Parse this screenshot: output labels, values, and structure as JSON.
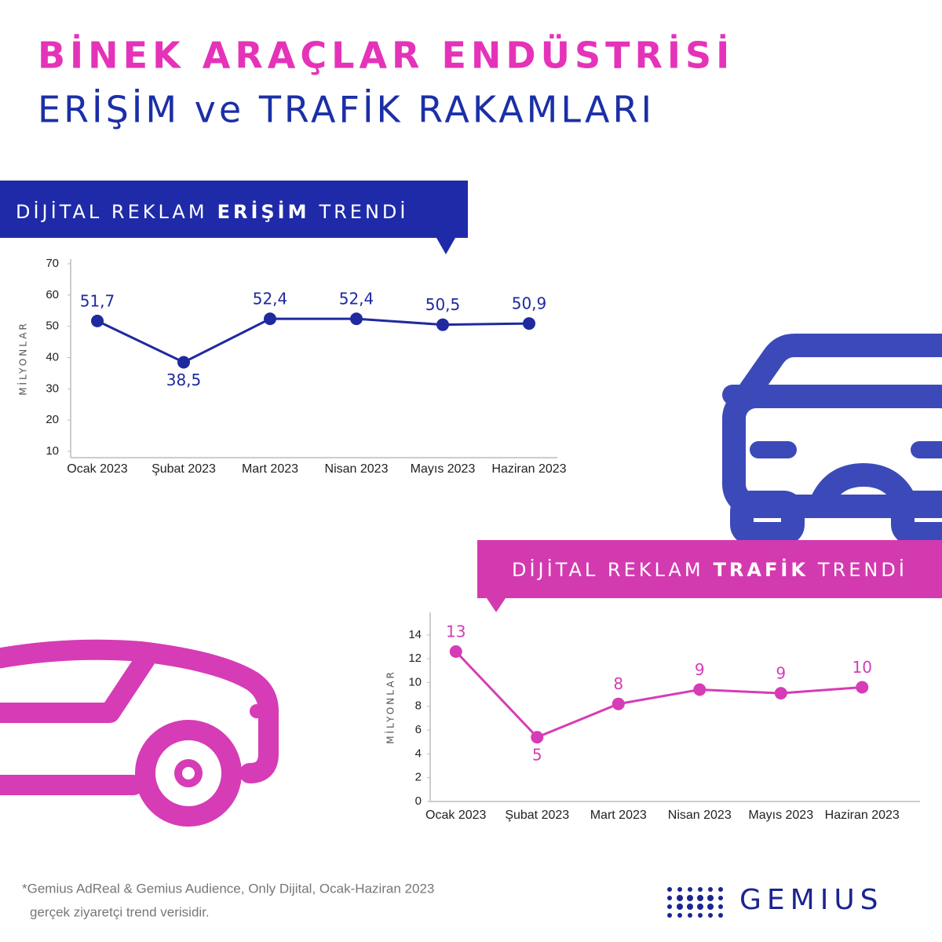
{
  "header": {
    "title": "BİNEK ARAÇLAR ENDÜSTRİSİ",
    "subtitle": "ERİŞİM ve TRAFİK RAKAMLARI"
  },
  "chart_data": [
    {
      "type": "line",
      "title": [
        "DİJİTAL REKLAM",
        "ERİŞİM",
        "TRENDİ"
      ],
      "y_label": "MİLYONLAR",
      "categories": [
        "Ocak 2023",
        "Şubat 2023",
        "Mart 2023",
        "Nisan 2023",
        "Mayıs 2023",
        "Haziran 2023"
      ],
      "values": [
        51.7,
        38.5,
        52.4,
        52.4,
        50.5,
        50.9
      ],
      "value_labels": [
        "51,7",
        "38,5",
        "52,4",
        "52,4",
        "50,5",
        "50,9"
      ],
      "color": "#1f2a9e",
      "ylim": [
        8,
        71.5
      ],
      "yticks": [
        10,
        20,
        30,
        40,
        50,
        60,
        70
      ]
    },
    {
      "type": "line",
      "title": [
        "DİJİTAL REKLAM",
        "TRAFİK",
        "TRENDİ"
      ],
      "y_label": "MİLYONLAR",
      "categories": [
        "Ocak 2023",
        "Şubat 2023",
        "Mart 2023",
        "Nisan 2023",
        "Mayıs 2023",
        "Haziran 2023"
      ],
      "values": [
        12.6,
        5.4,
        8.2,
        9.4,
        9.1,
        9.6
      ],
      "value_labels": [
        "13",
        "5",
        "8",
        "9",
        "9",
        "10"
      ],
      "color": "#d63cb6",
      "ylim": [
        0,
        15.9
      ],
      "yticks": [
        0,
        2,
        4,
        6,
        8,
        10,
        12,
        14
      ]
    }
  ],
  "footer": {
    "note": [
      "*Gemius AdReal & Gemius Audience, Only Dijital, Ocak-Haziran 2023",
      "gerçek ziyaretçi trend verisidir."
    ],
    "logo": "GEMIUS"
  }
}
